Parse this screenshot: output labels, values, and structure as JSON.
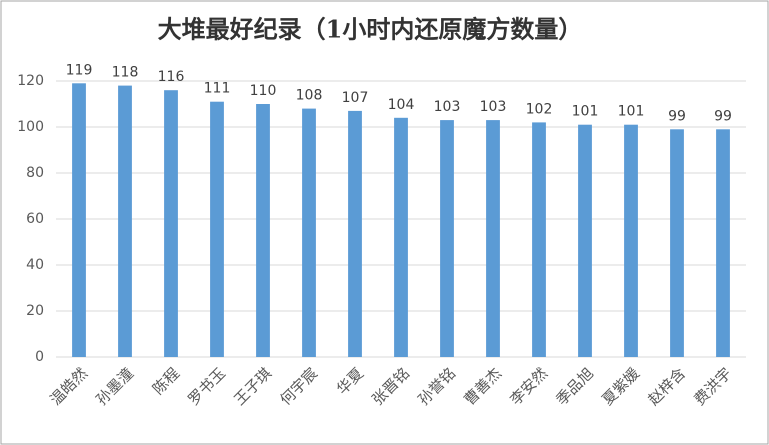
{
  "chart_data": {
    "type": "bar",
    "title": "大堆最好纪录（1小时内还原魔方数量）",
    "categories": [
      "温皓然",
      "孙墨潼",
      "陈程",
      "罗书玉",
      "王子琪",
      "何宇宸",
      "华夏",
      "张晋铭",
      "孙誉铭",
      "曹善杰",
      "李安然",
      "季品旭",
      "夏紫媛",
      "赵梓含",
      "费洪宇"
    ],
    "values": [
      119,
      118,
      116,
      111,
      110,
      108,
      107,
      104,
      103,
      103,
      102,
      101,
      101,
      99,
      99
    ],
    "color": "#5b9bd5",
    "ylim": [
      0,
      120
    ],
    "yticks": [
      0,
      20,
      40,
      60,
      80,
      100,
      120
    ],
    "grid": true
  }
}
